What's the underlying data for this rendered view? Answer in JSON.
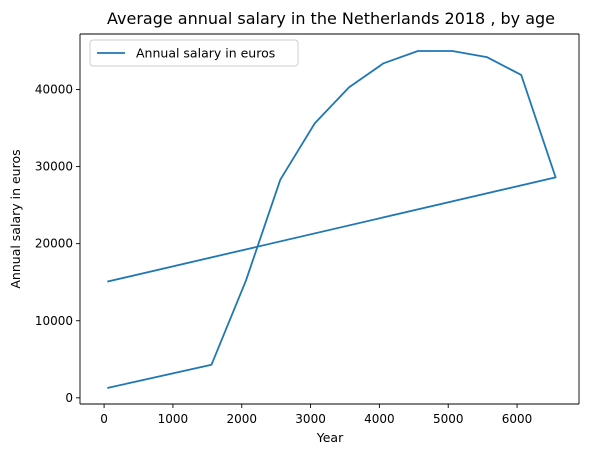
{
  "chart_data": {
    "type": "line",
    "title": "Average annual salary in the Netherlands 2018 , by age",
    "xlabel": "Year",
    "ylabel": "Annual salary in euros",
    "xlim": [
      -350,
      6900
    ],
    "ylim": [
      -800,
      47200
    ],
    "xticks": [
      0,
      1000,
      2000,
      3000,
      4000,
      5000,
      6000
    ],
    "yticks": [
      0,
      10000,
      20000,
      30000,
      40000
    ],
    "grid": false,
    "legend_position": "top-left",
    "series": [
      {
        "name": "Annual salary in euros",
        "color": "#1f77b4",
        "x": [
          60,
          6560,
          6060,
          5560,
          5060,
          4560,
          4060,
          3560,
          3060,
          2560,
          2060,
          1560,
          60
        ],
        "y": [
          15100,
          28600,
          41900,
          44200,
          45000,
          45000,
          43400,
          40300,
          35600,
          28300,
          15200,
          4300,
          1300
        ]
      }
    ]
  }
}
